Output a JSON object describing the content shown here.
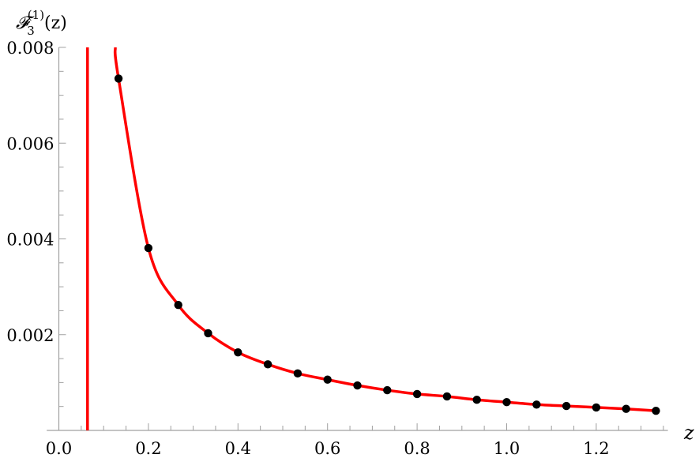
{
  "chart_data": {
    "type": "line",
    "title": "",
    "xlabel": "z",
    "ylabel": "𝓕",
    "ylabel_sub": "3",
    "ylabel_sup": "(1)",
    "ylabel_arg": "(z)",
    "xlim": [
      -0.027,
      1.36
    ],
    "ylim": [
      0,
      0.008
    ],
    "x_ticks": [
      0.0,
      0.2,
      0.4,
      0.6,
      0.8,
      1.0,
      1.2
    ],
    "x_tick_labels": [
      "0.0",
      "0.2",
      "0.4",
      "0.6",
      "0.8",
      "1.0",
      "1.2"
    ],
    "x_minor_step": 0.05,
    "y_ticks": [
      0.002,
      0.004,
      0.006,
      0.008
    ],
    "y_tick_labels": [
      "0.002",
      "0.004",
      "0.006",
      "0.008"
    ],
    "y_minor_step": 0.0005,
    "grid": false,
    "colors": {
      "curve": "#ff0000",
      "points": "#000000",
      "axis": "#a0a0a0"
    },
    "vertical_line": {
      "x": 0.064,
      "color": "#ff0000"
    },
    "series": [
      {
        "kind": "curve",
        "x": [
          0.126,
          0.1333,
          0.2,
          0.2667,
          0.3333,
          0.4,
          0.4667,
          0.5333,
          0.6,
          0.6667,
          0.7333,
          0.8,
          0.8667,
          0.9333,
          1.0,
          1.0667,
          1.1333,
          1.2,
          1.2667,
          1.3333
        ],
        "y": [
          0.008,
          0.00735,
          0.00381,
          0.00262,
          0.00203,
          0.00163,
          0.00138,
          0.00119,
          0.00106,
          0.00094,
          0.00084,
          0.00076,
          0.00071,
          0.00064,
          0.00059,
          0.00054,
          0.00051,
          0.00048,
          0.00045,
          0.00041
        ]
      },
      {
        "kind": "points",
        "x": [
          0.1333,
          0.2,
          0.2667,
          0.3333,
          0.4,
          0.4667,
          0.5333,
          0.6,
          0.6667,
          0.7333,
          0.8,
          0.8667,
          0.9333,
          1.0,
          1.0667,
          1.1333,
          1.2,
          1.2667,
          1.3333
        ],
        "y": [
          0.00735,
          0.00381,
          0.00262,
          0.00203,
          0.00163,
          0.00138,
          0.00119,
          0.00106,
          0.00094,
          0.00084,
          0.00076,
          0.00071,
          0.00064,
          0.00059,
          0.00054,
          0.00051,
          0.00048,
          0.00045,
          0.00041
        ]
      }
    ]
  }
}
